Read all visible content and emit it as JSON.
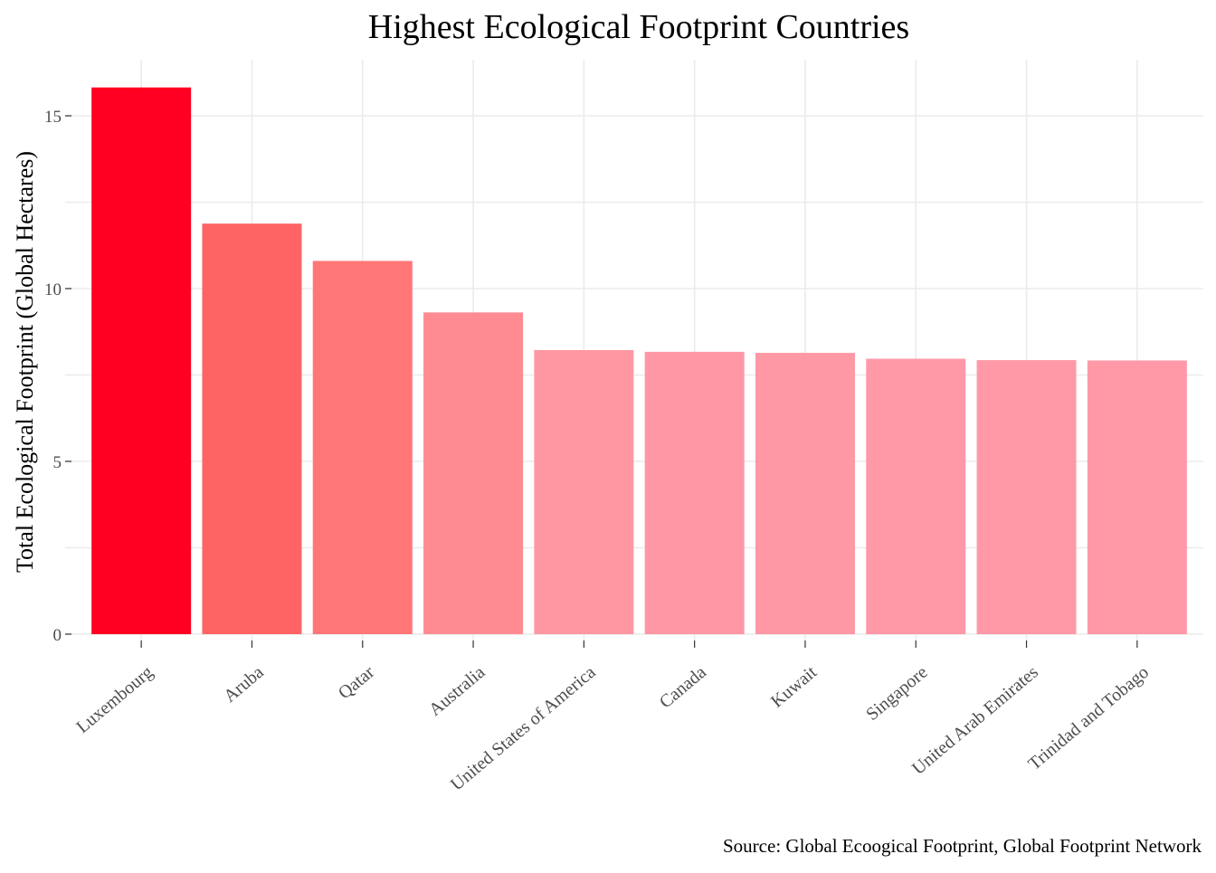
{
  "chart_data": {
    "type": "bar",
    "title": "Highest Ecological Footprint Countries",
    "xlabel": "",
    "ylabel": "Total Ecological Footprint (Global Hectares)",
    "caption": "Source: Global Ecoogical Footprint, Global Footprint Network",
    "categories": [
      "Luxembourg",
      "Aruba",
      "Qatar",
      "Australia",
      "United States of America",
      "Canada",
      "Kuwait",
      "Singapore",
      "United Arab Emirates",
      "Trinidad and Tobago"
    ],
    "values": [
      15.82,
      11.88,
      10.8,
      9.31,
      8.22,
      8.17,
      8.14,
      7.97,
      7.93,
      7.92
    ],
    "bar_colors": [
      "#ff0022",
      "#ff6464",
      "#ff7677",
      "#ff8b92",
      "#ff97a3",
      "#ff97a4",
      "#ff98a5",
      "#ff99a7",
      "#ff99a7",
      "#ff99a7"
    ],
    "ylim": [
      0,
      16.5
    ],
    "yticks": [
      0,
      5,
      10,
      15
    ],
    "ytick_labels": [
      "0",
      "5",
      "10",
      "15"
    ],
    "grid": true,
    "legend": "none"
  }
}
